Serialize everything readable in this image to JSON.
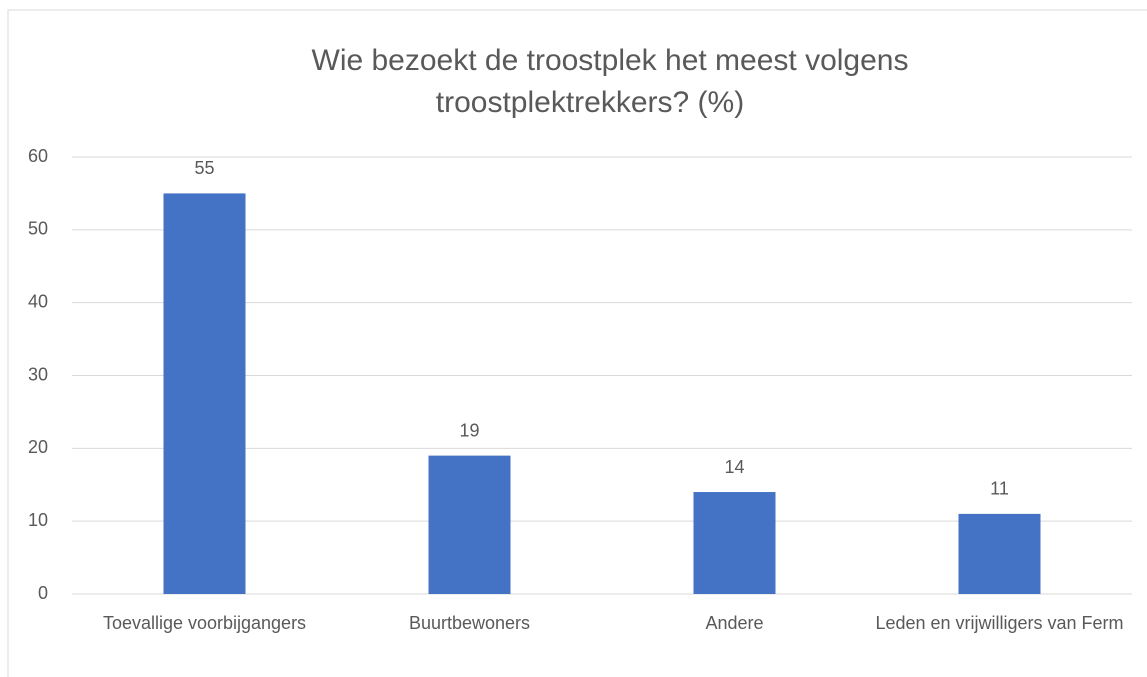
{
  "chart_data": {
    "type": "bar",
    "title": [
      "Wie bezoekt de troostplek het meest volgens",
      "troostplektrekkers? (%)"
    ],
    "categories": [
      "Toevallige voorbijgangers",
      "Buurtbewoners",
      "Andere",
      "Leden en vrijwilligers van Ferm"
    ],
    "values": [
      55,
      19,
      14,
      11
    ],
    "color": "#4472c4",
    "ylim": [
      0,
      60
    ],
    "yticks": [
      0,
      10,
      20,
      30,
      40,
      50,
      60
    ],
    "grid": true
  }
}
